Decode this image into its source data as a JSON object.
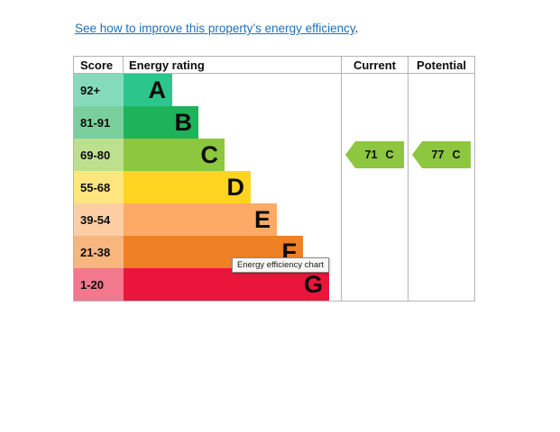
{
  "improvement_link": {
    "text": "See how to improve this property’s energy efficiency",
    "suffix": ".",
    "color": "#1d70b8"
  },
  "chart_data": {
    "type": "bar",
    "title": "Energy rating",
    "columns": {
      "score": "Score",
      "rating": "Energy rating",
      "current": "Current",
      "potential": "Potential"
    },
    "bands": [
      {
        "score": "92+",
        "letter": "A",
        "color": "#2cc68c",
        "score_bg": "#84dcbd"
      },
      {
        "score": "81-91",
        "letter": "B",
        "color": "#1db35a",
        "score_bg": "#79d09d"
      },
      {
        "score": "69-80",
        "letter": "C",
        "color": "#8dc63f",
        "score_bg": "#bde08f"
      },
      {
        "score": "55-68",
        "letter": "D",
        "color": "#ffd421",
        "score_bg": "#ffe57d"
      },
      {
        "score": "39-54",
        "letter": "E",
        "color": "#fcaa65",
        "score_bg": "#fdcda4"
      },
      {
        "score": "21-38",
        "letter": "F",
        "color": "#ef8023",
        "score_bg": "#f6b67e"
      },
      {
        "score": "1-20",
        "letter": "G",
        "color": "#e9153b",
        "score_bg": "#f3778d"
      }
    ],
    "current": {
      "value": "71",
      "letter": "C",
      "color": "#8dc63f"
    },
    "potential": {
      "value": "77",
      "letter": "C",
      "color": "#8dc63f"
    }
  },
  "tooltip": {
    "text": "Energy efficiency chart"
  },
  "colors": {
    "table_border": "#b1b4b6",
    "link": "#1d70b8"
  }
}
